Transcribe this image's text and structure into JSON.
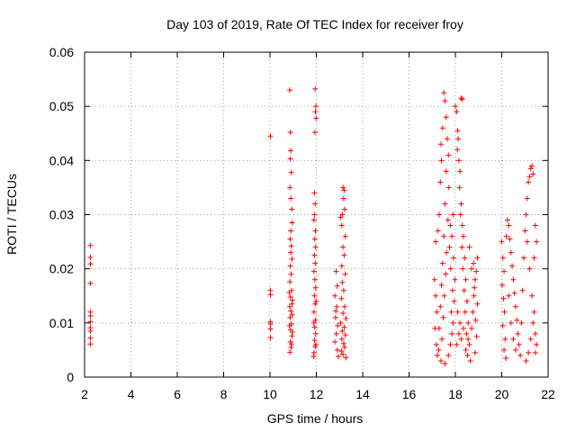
{
  "chart_data": {
    "type": "scatter",
    "title": "Day 103 of 2019, Rate Of TEC Index for receiver froy",
    "xlabel": "GPS time / hours",
    "ylabel": "ROTI / TECUs",
    "xlim": [
      2,
      22
    ],
    "ylim": [
      0,
      0.06
    ],
    "x_ticks": [
      2,
      4,
      6,
      8,
      10,
      12,
      14,
      16,
      18,
      20,
      22
    ],
    "y_ticks": [
      0,
      0.01,
      0.02,
      0.03,
      0.04,
      0.05,
      0.06
    ],
    "x_tick_labels": [
      "2",
      "4",
      "6",
      "8",
      "10",
      "12",
      "14",
      "16",
      "18",
      "20",
      "22"
    ],
    "y_tick_labels": [
      "0",
      "0.01",
      "0.02",
      "0.03",
      "0.04",
      "0.05",
      "0.06"
    ],
    "grid": true,
    "marker": "+",
    "color": "#ff0000",
    "series": [
      {
        "name": "ROTI",
        "points": [
          [
            2.25,
            0.0243
          ],
          [
            2.25,
            0.0221
          ],
          [
            2.25,
            0.0209
          ],
          [
            2.25,
            0.0173
          ],
          [
            2.25,
            0.012
          ],
          [
            2.25,
            0.0113
          ],
          [
            2.25,
            0.0102
          ],
          [
            2.25,
            0.0091
          ],
          [
            2.25,
            0.0085
          ],
          [
            2.25,
            0.0072
          ],
          [
            2.25,
            0.0061
          ],
          [
            10.02,
            0.0445
          ],
          [
            10.02,
            0.016
          ],
          [
            10.02,
            0.0152
          ],
          [
            10.02,
            0.0102
          ],
          [
            10.02,
            0.0098
          ],
          [
            10.02,
            0.0089
          ],
          [
            10.02,
            0.0073
          ],
          [
            10.85,
            0.053
          ],
          [
            10.88,
            0.0452
          ],
          [
            10.9,
            0.0418
          ],
          [
            10.88,
            0.0403
          ],
          [
            10.92,
            0.0378
          ],
          [
            10.86,
            0.035
          ],
          [
            10.9,
            0.033
          ],
          [
            10.94,
            0.031
          ],
          [
            10.96,
            0.0285
          ],
          [
            10.9,
            0.027
          ],
          [
            10.87,
            0.0255
          ],
          [
            10.92,
            0.0242
          ],
          [
            10.89,
            0.023
          ],
          [
            10.95,
            0.0218
          ],
          [
            10.88,
            0.0205
          ],
          [
            10.91,
            0.019
          ],
          [
            10.86,
            0.0176
          ],
          [
            10.93,
            0.016
          ],
          [
            10.88,
            0.0148
          ],
          [
            10.95,
            0.0135
          ],
          [
            10.9,
            0.0122
          ],
          [
            10.87,
            0.011
          ],
          [
            10.92,
            0.0098
          ],
          [
            10.89,
            0.0087
          ],
          [
            10.95,
            0.0076
          ],
          [
            10.88,
            0.0065
          ],
          [
            10.91,
            0.0055
          ],
          [
            10.86,
            0.0046
          ],
          [
            10.93,
            0.0061
          ],
          [
            10.97,
            0.0083
          ],
          [
            10.84,
            0.0095
          ],
          [
            10.96,
            0.0115
          ],
          [
            10.85,
            0.013
          ],
          [
            10.97,
            0.0142
          ],
          [
            10.83,
            0.0156
          ],
          [
            11.95,
            0.0532
          ],
          [
            11.98,
            0.05
          ],
          [
            11.96,
            0.049
          ],
          [
            11.99,
            0.0478
          ],
          [
            11.94,
            0.0452
          ],
          [
            11.92,
            0.034
          ],
          [
            11.95,
            0.032
          ],
          [
            11.93,
            0.03
          ],
          [
            11.9,
            0.029
          ],
          [
            11.96,
            0.027
          ],
          [
            11.93,
            0.0255
          ],
          [
            11.97,
            0.024
          ],
          [
            11.92,
            0.0225
          ],
          [
            11.95,
            0.021
          ],
          [
            11.9,
            0.0195
          ],
          [
            11.94,
            0.018
          ],
          [
            11.97,
            0.0165
          ],
          [
            11.92,
            0.015
          ],
          [
            11.95,
            0.0135
          ],
          [
            11.9,
            0.012
          ],
          [
            11.96,
            0.0105
          ],
          [
            11.93,
            0.0092
          ],
          [
            11.97,
            0.008
          ],
          [
            11.92,
            0.0068
          ],
          [
            11.95,
            0.0056
          ],
          [
            11.9,
            0.0045
          ],
          [
            11.88,
            0.0038
          ],
          [
            11.98,
            0.006
          ],
          [
            11.89,
            0.01
          ],
          [
            11.99,
            0.014
          ],
          [
            12.85,
            0.0195
          ],
          [
            12.9,
            0.0168
          ],
          [
            12.8,
            0.015
          ],
          [
            12.88,
            0.013
          ],
          [
            12.83,
            0.011
          ],
          [
            12.92,
            0.0095
          ],
          [
            12.86,
            0.008
          ],
          [
            12.8,
            0.0065
          ],
          [
            12.9,
            0.005
          ],
          [
            12.95,
            0.0038
          ],
          [
            12.84,
            0.0122
          ],
          [
            13.05,
            0.0295
          ],
          [
            13.1,
            0.028
          ],
          [
            13.15,
            0.035
          ],
          [
            13.2,
            0.0345
          ],
          [
            13.18,
            0.033
          ],
          [
            13.22,
            0.031
          ],
          [
            13.12,
            0.03
          ],
          [
            13.25,
            0.026
          ],
          [
            13.15,
            0.024
          ],
          [
            13.2,
            0.0225
          ],
          [
            13.1,
            0.0205
          ],
          [
            13.25,
            0.019
          ],
          [
            13.12,
            0.0175
          ],
          [
            13.18,
            0.016
          ],
          [
            13.08,
            0.0145
          ],
          [
            13.22,
            0.013
          ],
          [
            13.15,
            0.0118
          ],
          [
            13.28,
            0.0108
          ],
          [
            13.05,
            0.01
          ],
          [
            13.2,
            0.0092
          ],
          [
            13.12,
            0.0085
          ],
          [
            13.25,
            0.0078
          ],
          [
            13.1,
            0.007
          ],
          [
            13.18,
            0.0062
          ],
          [
            13.22,
            0.0055
          ],
          [
            13.08,
            0.0048
          ],
          [
            13.15,
            0.0042
          ],
          [
            13.28,
            0.0036
          ],
          [
            17.1,
            0.018
          ],
          [
            17.15,
            0.015
          ],
          [
            17.2,
            0.012
          ],
          [
            17.12,
            0.009
          ],
          [
            17.18,
            0.006
          ],
          [
            17.22,
            0.004
          ],
          [
            17.15,
            0.025
          ],
          [
            17.25,
            0.027
          ],
          [
            17.3,
            0.03
          ],
          [
            17.35,
            0.036
          ],
          [
            17.4,
            0.04
          ],
          [
            17.38,
            0.043
          ],
          [
            17.45,
            0.046
          ],
          [
            17.5,
            0.0525
          ],
          [
            17.55,
            0.051
          ],
          [
            17.6,
            0.048
          ],
          [
            17.65,
            0.044
          ],
          [
            17.7,
            0.041
          ],
          [
            17.6,
            0.038
          ],
          [
            17.72,
            0.035
          ],
          [
            17.55,
            0.032
          ],
          [
            17.68,
            0.029
          ],
          [
            17.5,
            0.026
          ],
          [
            17.62,
            0.023
          ],
          [
            17.45,
            0.021
          ],
          [
            17.58,
            0.019
          ],
          [
            17.4,
            0.017
          ],
          [
            17.52,
            0.015
          ],
          [
            17.35,
            0.013
          ],
          [
            17.48,
            0.011
          ],
          [
            17.3,
            0.009
          ],
          [
            17.42,
            0.007
          ],
          [
            17.28,
            0.005
          ],
          [
            17.38,
            0.003
          ],
          [
            17.55,
            0.0025
          ],
          [
            17.7,
            0.004
          ],
          [
            17.78,
            0.006
          ],
          [
            17.85,
            0.008
          ],
          [
            17.9,
            0.01
          ],
          [
            17.82,
            0.012
          ],
          [
            17.95,
            0.014
          ],
          [
            17.88,
            0.016
          ],
          [
            17.98,
            0.018
          ],
          [
            17.8,
            0.02
          ],
          [
            17.92,
            0.022
          ],
          [
            17.75,
            0.024
          ],
          [
            17.85,
            0.026
          ],
          [
            17.78,
            0.028
          ],
          [
            17.9,
            0.03
          ],
          [
            18.0,
            0.05
          ],
          [
            18.05,
            0.049
          ],
          [
            18.1,
            0.0455
          ],
          [
            18.12,
            0.044
          ],
          [
            18.08,
            0.042
          ],
          [
            18.15,
            0.04
          ],
          [
            18.2,
            0.038
          ],
          [
            18.18,
            0.035
          ],
          [
            18.25,
            0.032
          ],
          [
            18.22,
            0.03
          ],
          [
            18.3,
            0.028
          ],
          [
            18.35,
            0.026
          ],
          [
            18.28,
            0.024
          ],
          [
            18.4,
            0.022
          ],
          [
            18.32,
            0.02
          ],
          [
            18.45,
            0.018
          ],
          [
            18.38,
            0.016
          ],
          [
            18.5,
            0.014
          ],
          [
            18.42,
            0.012
          ],
          [
            18.55,
            0.01
          ],
          [
            18.48,
            0.008
          ],
          [
            18.6,
            0.006
          ],
          [
            18.52,
            0.004
          ],
          [
            18.65,
            0.003
          ],
          [
            18.25,
            0.0515
          ],
          [
            18.3,
            0.0513
          ],
          [
            18.05,
            0.006
          ],
          [
            18.15,
            0.008
          ],
          [
            18.2,
            0.01
          ],
          [
            18.1,
            0.012
          ],
          [
            18.25,
            0.007
          ],
          [
            18.35,
            0.009
          ],
          [
            18.45,
            0.005
          ],
          [
            18.55,
            0.007
          ],
          [
            18.7,
            0.009
          ],
          [
            18.75,
            0.012
          ],
          [
            18.8,
            0.015
          ],
          [
            18.85,
            0.018
          ],
          [
            18.78,
            0.021
          ],
          [
            18.9,
            0.0195
          ],
          [
            18.82,
            0.0165
          ],
          [
            18.95,
            0.0135
          ],
          [
            18.88,
            0.0105
          ],
          [
            18.92,
            0.0075
          ],
          [
            18.85,
            0.0045
          ],
          [
            18.95,
            0.022
          ],
          [
            18.6,
            0.024
          ],
          [
            18.7,
            0.02
          ],
          [
            20.0,
            0.025
          ],
          [
            20.05,
            0.022
          ],
          [
            20.1,
            0.0195
          ],
          [
            20.02,
            0.017
          ],
          [
            20.08,
            0.0145
          ],
          [
            20.12,
            0.012
          ],
          [
            20.05,
            0.0095
          ],
          [
            20.15,
            0.007
          ],
          [
            20.1,
            0.005
          ],
          [
            20.18,
            0.0035
          ],
          [
            20.2,
            0.026
          ],
          [
            20.25,
            0.029
          ],
          [
            20.3,
            0.028
          ],
          [
            20.35,
            0.0255
          ],
          [
            20.4,
            0.023
          ],
          [
            20.45,
            0.0205
          ],
          [
            20.5,
            0.018
          ],
          [
            20.55,
            0.0155
          ],
          [
            20.6,
            0.013
          ],
          [
            20.65,
            0.0105
          ],
          [
            20.7,
            0.008
          ],
          [
            20.75,
            0.006
          ],
          [
            20.8,
            0.004
          ],
          [
            20.3,
            0.015
          ],
          [
            20.4,
            0.01
          ],
          [
            20.5,
            0.007
          ],
          [
            20.6,
            0.005
          ],
          [
            20.85,
            0.01
          ],
          [
            20.9,
            0.016
          ],
          [
            20.95,
            0.022
          ],
          [
            21.0,
            0.027
          ],
          [
            21.05,
            0.03
          ],
          [
            21.1,
            0.033
          ],
          [
            21.15,
            0.036
          ],
          [
            21.2,
            0.037
          ],
          [
            21.25,
            0.0385
          ],
          [
            21.3,
            0.039
          ],
          [
            21.35,
            0.0375
          ],
          [
            21.1,
            0.025
          ],
          [
            21.2,
            0.02
          ],
          [
            21.3,
            0.015
          ],
          [
            21.4,
            0.012
          ],
          [
            21.45,
            0.008
          ],
          [
            21.5,
            0.006
          ],
          [
            21.4,
            0.022
          ],
          [
            21.45,
            0.028
          ],
          [
            21.5,
            0.025
          ],
          [
            21.35,
            0.01
          ],
          [
            21.25,
            0.007
          ],
          [
            21.15,
            0.0045
          ],
          [
            21.05,
            0.003
          ],
          [
            21.45,
            0.0045
          ]
        ]
      }
    ]
  }
}
